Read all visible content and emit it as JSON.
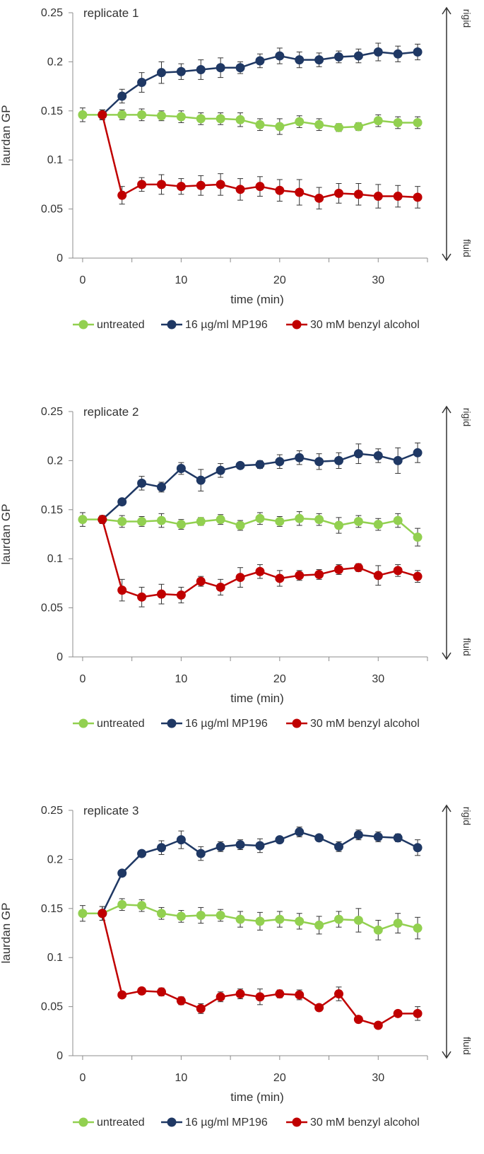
{
  "chart_data": [
    {
      "type": "line",
      "title": "replicate 1",
      "xlabel": "time (min)",
      "ylabel": "laurdan GP",
      "xlim": [
        -1,
        35
      ],
      "ylim": [
        0,
        0.25
      ],
      "x_ticks": [
        "0",
        "10",
        "20",
        "30"
      ],
      "y_ticks": [
        "0",
        "0.05",
        "0.1",
        "0.15",
        "0.2",
        "0.25"
      ],
      "side_labels": {
        "top": "rigid",
        "bottom": "fluid"
      },
      "x": [
        0,
        2,
        4,
        6,
        8,
        10,
        12,
        14,
        16,
        18,
        20,
        22,
        24,
        26,
        28,
        30,
        32,
        34
      ],
      "series": [
        {
          "name": "untreated",
          "color": "#92d050",
          "values": [
            0.146,
            0.146,
            0.146,
            0.146,
            0.145,
            0.144,
            0.142,
            0.142,
            0.141,
            0.136,
            0.134,
            0.139,
            0.136,
            0.133,
            0.134,
            0.14,
            0.138,
            0.138
          ],
          "errors": [
            0.007,
            0.005,
            0.005,
            0.006,
            0.005,
            0.006,
            0.006,
            0.006,
            0.007,
            0.006,
            0.008,
            0.006,
            0.006,
            0.004,
            0.004,
            0.006,
            0.006,
            0.006
          ]
        },
        {
          "name": "16 µg/ml MP196",
          "color": "#1f3864",
          "values": [
            null,
            0.146,
            0.165,
            0.179,
            0.189,
            0.19,
            0.192,
            0.194,
            0.194,
            0.201,
            0.206,
            0.202,
            0.202,
            0.205,
            0.206,
            0.21,
            0.208,
            0.21
          ],
          "errors": [
            0,
            0.005,
            0.007,
            0.01,
            0.011,
            0.008,
            0.01,
            0.01,
            0.006,
            0.007,
            0.008,
            0.008,
            0.007,
            0.006,
            0.007,
            0.009,
            0.008,
            0.008
          ]
        },
        {
          "name": "30 mM benzyl alcohol",
          "color": "#c00000",
          "values": [
            null,
            0.146,
            0.064,
            0.075,
            0.075,
            0.073,
            0.074,
            0.075,
            0.07,
            0.073,
            0.069,
            0.067,
            0.061,
            0.066,
            0.065,
            0.063,
            0.063,
            0.062
          ],
          "errors": [
            0,
            0.005,
            0.009,
            0.007,
            0.01,
            0.008,
            0.01,
            0.011,
            0.011,
            0.01,
            0.011,
            0.013,
            0.011,
            0.01,
            0.011,
            0.012,
            0.011,
            0.011
          ]
        }
      ]
    },
    {
      "type": "line",
      "title": "replicate 2",
      "xlabel": "time (min)",
      "ylabel": "laurdan GP",
      "xlim": [
        -1,
        35
      ],
      "ylim": [
        0,
        0.25
      ],
      "x_ticks": [
        "0",
        "10",
        "20",
        "30"
      ],
      "y_ticks": [
        "0",
        "0.05",
        "0.1",
        "0.15",
        "0.2",
        "0.25"
      ],
      "side_labels": {
        "top": "rigid",
        "bottom": "fluid"
      },
      "x": [
        0,
        2,
        4,
        6,
        8,
        10,
        12,
        14,
        16,
        18,
        20,
        22,
        24,
        26,
        28,
        30,
        32,
        34
      ],
      "series": [
        {
          "name": "untreated",
          "color": "#92d050",
          "values": [
            0.14,
            0.14,
            0.138,
            0.138,
            0.139,
            0.135,
            0.138,
            0.14,
            0.134,
            0.141,
            0.138,
            0.141,
            0.14,
            0.134,
            0.138,
            0.135,
            0.139,
            0.122
          ],
          "errors": [
            0.007,
            0.004,
            0.006,
            0.005,
            0.007,
            0.005,
            0.004,
            0.005,
            0.005,
            0.006,
            0.005,
            0.007,
            0.006,
            0.008,
            0.006,
            0.006,
            0.007,
            0.009
          ]
        },
        {
          "name": "16 µg/ml MP196",
          "color": "#1f3864",
          "values": [
            null,
            0.14,
            0.158,
            0.177,
            0.173,
            0.192,
            0.18,
            0.19,
            0.195,
            0.196,
            0.199,
            0.203,
            0.199,
            0.2,
            0.207,
            0.205,
            0.2,
            0.208
          ],
          "errors": [
            0,
            0.004,
            0.003,
            0.007,
            0.005,
            0.006,
            0.011,
            0.007,
            0.003,
            0.004,
            0.007,
            0.007,
            0.008,
            0.008,
            0.01,
            0.007,
            0.013,
            0.01
          ]
        },
        {
          "name": "30 mM benzyl alcohol",
          "color": "#c00000",
          "values": [
            null,
            0.14,
            0.068,
            0.061,
            0.064,
            0.063,
            0.077,
            0.071,
            0.081,
            0.087,
            0.08,
            0.083,
            0.084,
            0.089,
            0.091,
            0.083,
            0.088,
            0.082
          ],
          "errors": [
            0,
            0.004,
            0.011,
            0.01,
            0.01,
            0.008,
            0.005,
            0.008,
            0.01,
            0.007,
            0.008,
            0.005,
            0.005,
            0.005,
            0.004,
            0.01,
            0.006,
            0.006
          ]
        }
      ]
    },
    {
      "type": "line",
      "title": "replicate 3",
      "xlabel": "time (min)",
      "ylabel": "laurdan GP",
      "xlim": [
        -1,
        35
      ],
      "ylim": [
        0,
        0.25
      ],
      "x_ticks": [
        "0",
        "10",
        "20",
        "30"
      ],
      "y_ticks": [
        "0",
        "0.05",
        "0.1",
        "0.15",
        "0.2",
        "0.25"
      ],
      "side_labels": {
        "top": "rigid",
        "bottom": "fluid"
      },
      "x": [
        0,
        2,
        4,
        6,
        8,
        10,
        12,
        14,
        16,
        18,
        20,
        22,
        24,
        26,
        28,
        30,
        32,
        34
      ],
      "series": [
        {
          "name": "untreated",
          "color": "#92d050",
          "values": [
            0.145,
            0.145,
            0.154,
            0.153,
            0.145,
            0.142,
            0.143,
            0.143,
            0.139,
            0.137,
            0.139,
            0.137,
            0.133,
            0.139,
            0.138,
            0.128,
            0.135,
            0.13
          ],
          "errors": [
            0.008,
            0.007,
            0.006,
            0.006,
            0.006,
            0.006,
            0.008,
            0.006,
            0.008,
            0.009,
            0.008,
            0.008,
            0.009,
            0.008,
            0.012,
            0.01,
            0.01,
            0.011
          ]
        },
        {
          "name": "16 µg/ml MP196",
          "color": "#1f3864",
          "values": [
            null,
            0.145,
            0.186,
            0.206,
            0.212,
            0.22,
            0.206,
            0.213,
            0.215,
            0.214,
            0.22,
            0.228,
            0.222,
            0.213,
            0.225,
            0.223,
            0.222,
            0.212
          ],
          "errors": [
            0,
            0.007,
            0.003,
            0.003,
            0.007,
            0.009,
            0.007,
            0.005,
            0.005,
            0.007,
            0.003,
            0.005,
            0.003,
            0.005,
            0.005,
            0.005,
            0.004,
            0.008
          ]
        },
        {
          "name": "30 mM benzyl alcohol",
          "color": "#c00000",
          "values": [
            null,
            0.145,
            0.062,
            0.066,
            0.065,
            0.056,
            0.048,
            0.06,
            0.063,
            0.06,
            0.063,
            0.062,
            0.049,
            0.063,
            0.037,
            0.031,
            0.043,
            0.043
          ],
          "errors": [
            0,
            0.007,
            0.003,
            0.003,
            0.004,
            0.004,
            0.005,
            0.005,
            0.005,
            0.008,
            0.004,
            0.005,
            0.003,
            0.007,
            0.003,
            0.003,
            0.003,
            0.007
          ]
        }
      ]
    }
  ]
}
